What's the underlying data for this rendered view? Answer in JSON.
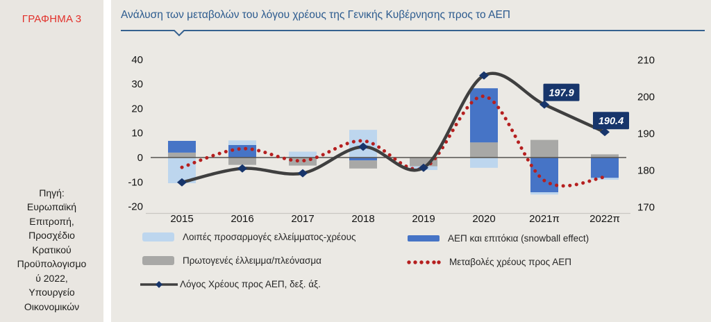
{
  "sidebar": {
    "figure_label": "ΓΡΑΦΗΜΑ 3",
    "source": "Πηγή:\nΕυρωπαϊκή\nΕπιτροπή,\nΠροσχέδιο\nΚρατικού\nΠροϋπολογισμο\nύ 2022,\nΥπουργείο\nΟικονομικών"
  },
  "main": {
    "title": "Ανάλυση των μεταβολών του λόγου χρέους της Γενικής Κυβέρνησης προς το ΑΕΠ"
  },
  "legend": {
    "items": [
      {
        "key": "adjustments",
        "label": "Λοιπές προσαρμογές ελλείμματος-χρέους"
      },
      {
        "key": "snowball",
        "label": "ΑΕΠ και επιτόκια (snowball effect)"
      },
      {
        "key": "primary",
        "label": "Πρωτογενές έλλειμμα/πλεόνασμα"
      },
      {
        "key": "debt_changes",
        "label": "Μεταβολές χρέους προς ΑΕΠ"
      },
      {
        "key": "debt_ratio",
        "label": "Λόγος Χρέους προς ΑΕΠ, δεξ. άξ."
      }
    ]
  },
  "colors": {
    "adjustments": "#bdd6ee",
    "snowball": "#4674c6",
    "primary": "#a8a8a6",
    "debt_changes": "#b51f1f",
    "debt_ratio_line": "#3f3f3f",
    "marker_navy": "#17356b",
    "annotation_bg": "#17356b",
    "annotation_text": "#ffffff",
    "axis_text": "#121212",
    "zero_line": "#55524f",
    "title_blue": "#2b5a8e",
    "figure_label_red": "#e2302a"
  },
  "chart_data": {
    "type": "combo-stacked-bar-line",
    "categories": [
      "2015",
      "2016",
      "2017",
      "2018",
      "2019",
      "2020",
      "2021π",
      "2022π"
    ],
    "left_axis": {
      "ticks": [
        40,
        30,
        20,
        10,
        0,
        -10,
        -20
      ],
      "min": -20,
      "max": 40
    },
    "right_axis": {
      "ticks": [
        210,
        200,
        190,
        180,
        170
      ],
      "min": 170,
      "max": 210
    },
    "bar_series": [
      {
        "key": "adjustments",
        "name": "Λοιπές προσαρμογές ελλείμματος-χρέους"
      },
      {
        "key": "snowball",
        "name": "ΑΕΠ και επιτόκια (snowball effect)"
      },
      {
        "key": "primary",
        "name": "Πρωτογενές έλλειμμα/πλεόνασμα"
      }
    ],
    "bars": [
      {
        "category": "2015",
        "segments": [
          {
            "series": "primary",
            "value": 2.0
          },
          {
            "series": "snowball",
            "value": 4.8
          },
          {
            "series": "adjustments",
            "value": -10.5
          }
        ]
      },
      {
        "category": "2016",
        "segments": [
          {
            "series": "snowball",
            "value": 5.1
          },
          {
            "series": "adjustments",
            "value": 1.9
          },
          {
            "series": "primary",
            "value": -3.0
          }
        ]
      },
      {
        "category": "2017",
        "segments": [
          {
            "series": "adjustments",
            "value": 2.4
          },
          {
            "series": "primary",
            "value": -3.3
          }
        ]
      },
      {
        "category": "2018",
        "segments": [
          {
            "series": "adjustments",
            "value": 11.3
          },
          {
            "series": "snowball",
            "value": -1.2
          },
          {
            "series": "primary",
            "value": -3.3
          }
        ]
      },
      {
        "category": "2019",
        "segments": [
          {
            "series": "primary",
            "value": -3.6
          },
          {
            "series": "adjustments",
            "value": -1.5
          }
        ]
      },
      {
        "category": "2020",
        "segments": [
          {
            "series": "primary",
            "value": 6.2
          },
          {
            "series": "snowball",
            "value": 22.1
          },
          {
            "series": "adjustments",
            "value": -4.2
          }
        ]
      },
      {
        "category": "2021π",
        "segments": [
          {
            "series": "primary",
            "value": 7.2
          },
          {
            "series": "snowball",
            "value": -14.2
          },
          {
            "series": "adjustments",
            "value": -0.9
          }
        ]
      },
      {
        "category": "2022π",
        "segments": [
          {
            "series": "primary",
            "value": 1.3
          },
          {
            "series": "snowball",
            "value": -8.3
          },
          {
            "series": "adjustments",
            "value": -0.8
          }
        ]
      }
    ],
    "line_series": [
      {
        "key": "debt_changes",
        "name": "Μεταβολές χρέους προς ΑΕΠ",
        "axis": "left",
        "style": "dotted",
        "values": [
          -4.0,
          3.6,
          -1.3,
          6.8,
          -4.4,
          25.0,
          -9.4,
          -8.0
        ]
      },
      {
        "key": "debt_ratio",
        "name": "Λόγος Χρέους προς ΑΕΠ, δεξ. άξ.",
        "axis": "right",
        "style": "solid-diamond",
        "values": [
          176.7,
          180.5,
          179.2,
          186.4,
          180.7,
          205.8,
          197.9,
          190.4
        ]
      }
    ],
    "annotations": [
      {
        "category": "2021π",
        "label": "197.9"
      },
      {
        "category": "2022π",
        "label": "190.4"
      }
    ]
  }
}
